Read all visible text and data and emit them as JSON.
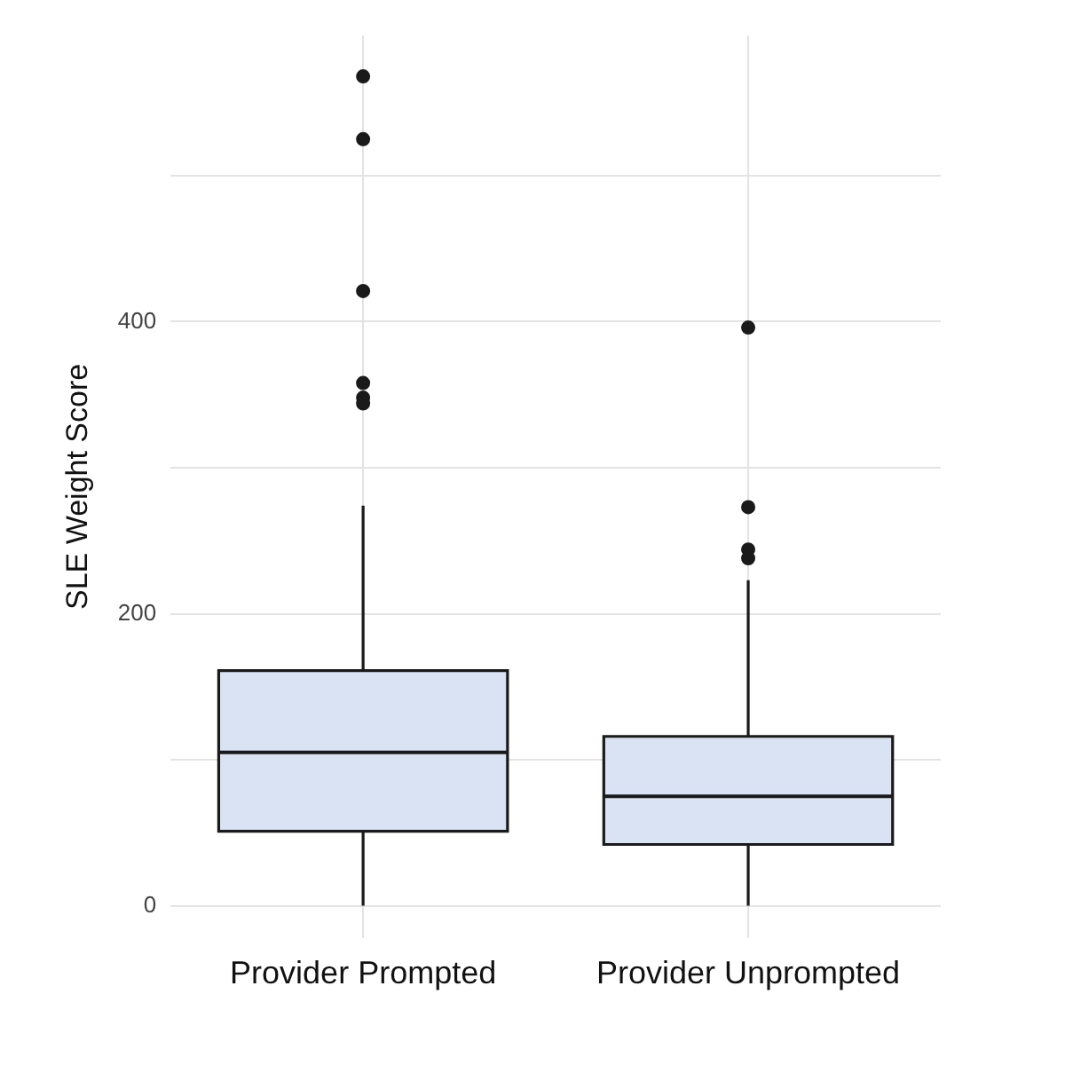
{
  "chart_data": {
    "type": "box",
    "ylabel": "SLE Weight Score",
    "categories": [
      "Provider Prompted",
      "Provider Unprompted"
    ],
    "color": "#dae3f3",
    "boxes": [
      {
        "low": 0,
        "q1": 51,
        "median": 105,
        "q3": 161,
        "high": 274,
        "outliers": [
          568,
          525,
          421,
          358,
          348,
          344
        ]
      },
      {
        "low": 0,
        "q1": 42,
        "median": 75,
        "q3": 116,
        "high": 223,
        "outliers": [
          396,
          273,
          244,
          238
        ]
      }
    ],
    "ylim": [
      -22,
      596
    ],
    "yticks": [
      0,
      {
        "value": 100,
        "label": null
      },
      200,
      {
        "value": 300,
        "label": null
      },
      400,
      {
        "value": 500,
        "label": null
      }
    ],
    "grid": true
  }
}
